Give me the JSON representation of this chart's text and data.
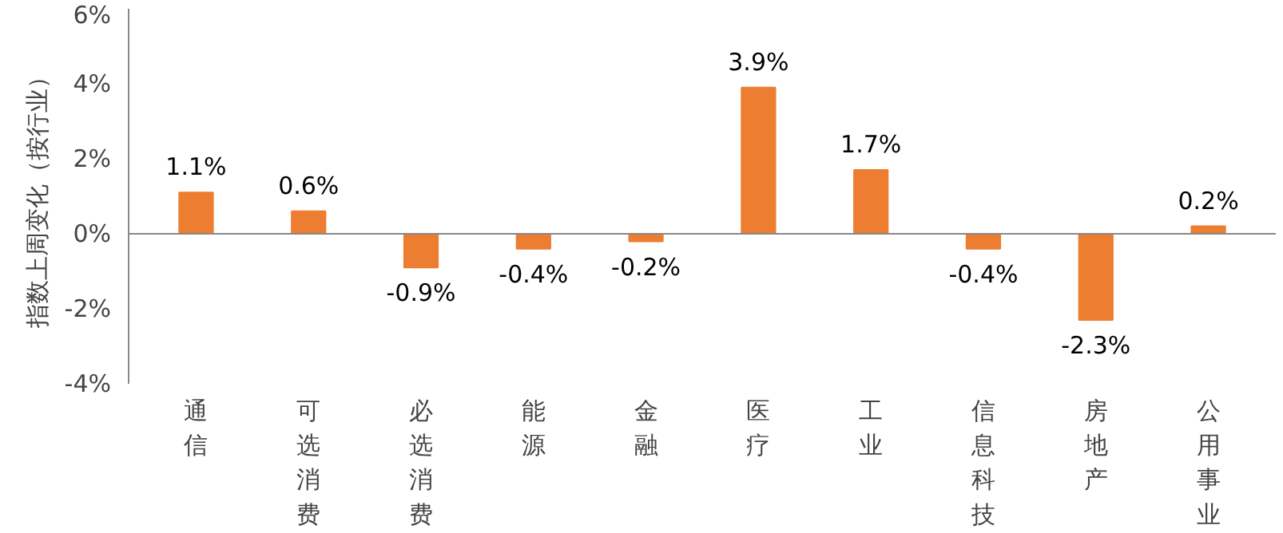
{
  "chart_data": {
    "type": "bar",
    "ylabel": "指数上周变化（按行业）",
    "categories": [
      "通信",
      "可选消费",
      "必选消费",
      "能源",
      "金融",
      "医疗",
      "工业",
      "信息科技",
      "房地产",
      "公用事业"
    ],
    "values": [
      1.1,
      0.6,
      -0.9,
      -0.4,
      -0.2,
      3.9,
      1.7,
      -0.4,
      -2.3,
      0.2
    ],
    "value_labels": [
      "1.1%",
      "0.6%",
      "-0.9%",
      "-0.4%",
      "-0.2%",
      "3.9%",
      "1.7%",
      "-0.4%",
      "-2.3%",
      "0.2%"
    ],
    "color": "#ed7d31",
    "ylim": [
      -4,
      6
    ],
    "yticks": [
      {
        "value": -4,
        "label": "-4%"
      },
      {
        "value": -2,
        "label": "-2%"
      },
      {
        "value": 0,
        "label": "0%"
      },
      {
        "value": 2,
        "label": "2%"
      },
      {
        "value": 4,
        "label": "4%"
      },
      {
        "value": 6,
        "label": "6%"
      }
    ]
  }
}
